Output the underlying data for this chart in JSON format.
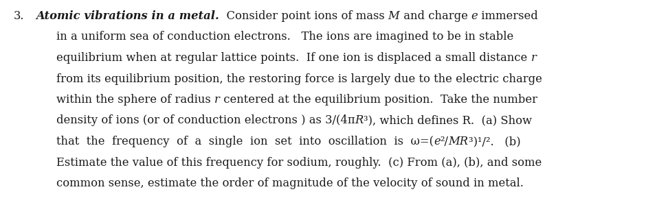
{
  "background_color": "#ffffff",
  "text_color": "#1a1a1a",
  "figure_width": 9.56,
  "figure_height": 3.21,
  "dpi": 100,
  "font_size": 11.8,
  "font_family": "DejaVu Serif",
  "number_text": "3.",
  "title_text": "Atomic vibrations in a metal.",
  "line1_parts": [
    {
      "text": "  Consider point ions of mass ",
      "style": "normal"
    },
    {
      "text": "M",
      "style": "italic"
    },
    {
      "text": " and charge ",
      "style": "normal"
    },
    {
      "text": "e",
      "style": "italic"
    },
    {
      "text": " immersed",
      "style": "normal"
    }
  ],
  "line2_parts": [
    {
      "text": "in a uniform sea of conduction electrons.   The ions are imagined to be in stable",
      "style": "normal"
    }
  ],
  "line3_parts": [
    {
      "text": "equilibrium when at regular lattice points.  If one ion is displaced a small distance ",
      "style": "normal"
    },
    {
      "text": "r",
      "style": "italic"
    }
  ],
  "line4_parts": [
    {
      "text": "from its equilibrium position, the restoring force is largely due to the electric charge",
      "style": "normal"
    }
  ],
  "line5_parts": [
    {
      "text": "within the sphere of radius ",
      "style": "normal"
    },
    {
      "text": "r",
      "style": "italic"
    },
    {
      "text": " centered at the equilibrium position.  Take the number",
      "style": "normal"
    }
  ],
  "line6_parts": [
    {
      "text": "density of ions (or of conduction electrons ) as 3/(4π",
      "style": "normal"
    },
    {
      "text": "R",
      "style": "italic"
    },
    {
      "text": "³), which defines R.  (a) Show",
      "style": "normal"
    }
  ],
  "line7_parts": [
    {
      "text": "that  the  frequency  of  a  single  ion  set  into  oscillation  is  ω=(",
      "style": "normal"
    },
    {
      "text": "e",
      "style": "italic"
    },
    {
      "text": "²/",
      "style": "normal"
    },
    {
      "text": "MR",
      "style": "italic"
    },
    {
      "text": "³)¹/².   (b)",
      "style": "normal"
    }
  ],
  "line8_parts": [
    {
      "text": "Estimate the value of this frequency for sodium, roughly.  (c) From (a), (b), and some",
      "style": "normal"
    }
  ],
  "line9_parts": [
    {
      "text": "common sense, estimate the order of magnitude of the velocity of sound in metal.",
      "style": "normal"
    }
  ]
}
